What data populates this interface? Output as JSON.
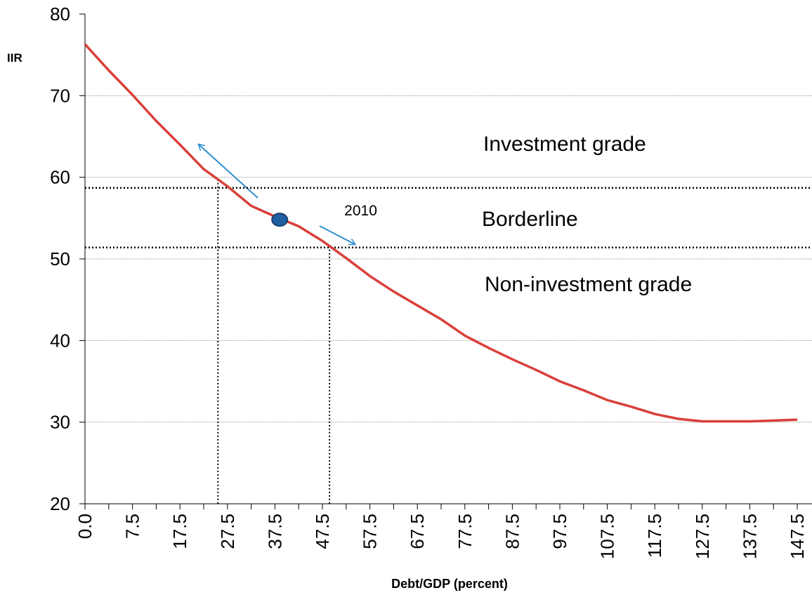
{
  "chart_data": {
    "type": "line",
    "y_label": "IIR",
    "x_label": "Debt/GDP (percent)",
    "categories": [
      "0.0",
      null,
      "7.5",
      null,
      "17.5",
      null,
      "27.5",
      null,
      "37.5",
      null,
      "47.5",
      null,
      "57.5",
      null,
      "67.5",
      null,
      "77.5",
      null,
      "87.5",
      null,
      "97.5",
      null,
      "107.5",
      null,
      "117.5",
      null,
      "127.5",
      null,
      "137.5",
      null,
      "147.5"
    ],
    "series": [
      {
        "color": "#d9403a",
        "values": [
          76.3,
          73.1,
          70.1,
          66.9,
          64.0,
          61.0,
          58.9,
          56.5,
          55.2,
          54.0,
          52.2,
          50.1,
          47.9,
          46.0,
          44.3,
          42.6,
          40.6,
          39.1,
          37.7,
          36.4,
          35.0,
          33.9,
          32.7,
          31.9,
          31.0,
          30.4,
          30.1,
          30.1,
          30.1,
          30.2,
          30.3
        ]
      }
    ],
    "ylim": [
      20,
      80
    ],
    "yticks": [
      20,
      30,
      40,
      50,
      60,
      70,
      80
    ],
    "grid": true,
    "reference_lines": {
      "y": [
        58.7,
        51.4
      ],
      "x": [
        5.6,
        10.3
      ]
    },
    "point": {
      "label": "2010",
      "x": 8.2,
      "y": 54.8,
      "color": "#1f5fa0"
    },
    "zones": [
      "Investment grade",
      "Borderline",
      "Non-investment grade"
    ]
  }
}
